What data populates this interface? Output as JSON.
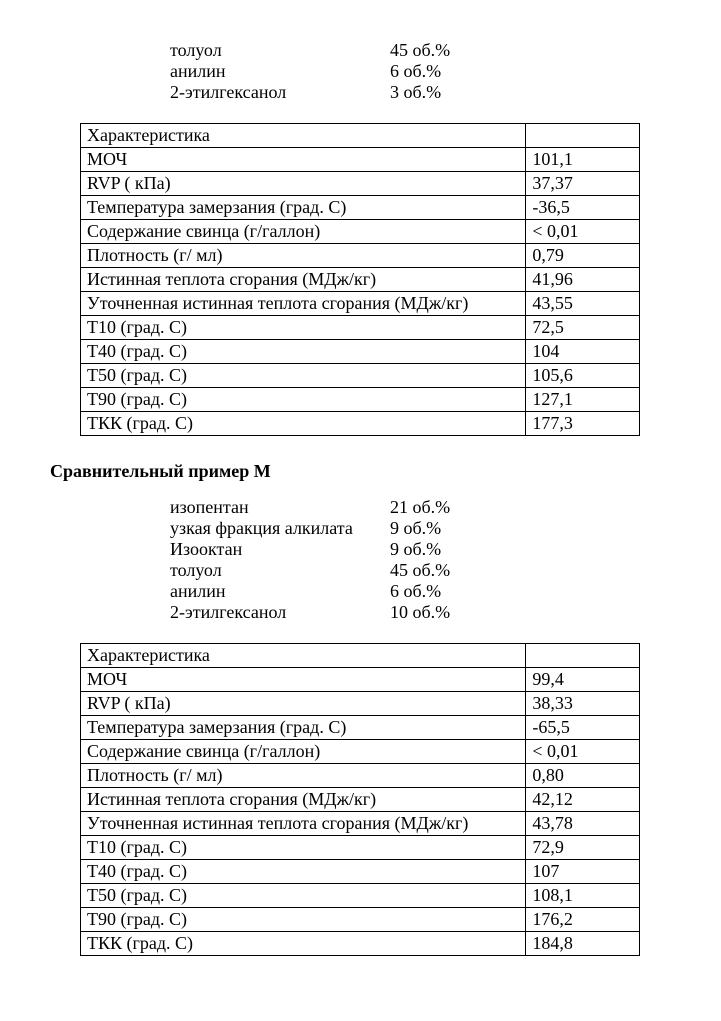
{
  "composition1": [
    {
      "label": "толуол",
      "value": "45 об.%"
    },
    {
      "label": "анилин",
      "value": "6 об.%"
    },
    {
      "label": "2-этилгексанол",
      "value": "3 об.%"
    }
  ],
  "table1": {
    "header": "Характеристика",
    "rows": [
      {
        "label": "МОЧ",
        "value": "101,1"
      },
      {
        "label": "RVP ( кПа)",
        "value": "37,37"
      },
      {
        "label": "Температура замерзания (град. С)",
        "value": "-36,5"
      },
      {
        "label": "Содержание свинца (г/галлон)",
        "value": "< 0,01"
      },
      {
        "label": "Плотность (г/ мл)",
        "value": "0,79"
      },
      {
        "label": "Истинная теплота сгорания (МДж/кг)",
        "value": "41,96"
      },
      {
        "label": "Уточненная истинная теплота сгорания (МДж/кг)",
        "value": "43,55"
      },
      {
        "label": "Т10 (град. С)",
        "value": "72,5"
      },
      {
        "label": "Т40 (град. С)",
        "value": "104"
      },
      {
        "label": "Т50 (град. С)",
        "value": "105,6"
      },
      {
        "label": "Т90 (град. С)",
        "value": "127,1"
      },
      {
        "label": "ТКК (град. С)",
        "value": "177,3"
      }
    ]
  },
  "section_title": "Сравнительный пример М",
  "composition2": [
    {
      "label": "изопентан",
      "value": "21 об.%"
    },
    {
      "label": "узкая фракция алкилата",
      "value": "9 об.%"
    },
    {
      "label": "Изооктан",
      "value": "9 об.%"
    },
    {
      "label": "толуол",
      "value": "45 об.%"
    },
    {
      "label": "анилин",
      "value": "6 об.%"
    },
    {
      "label": "2-этилгексанол",
      "value": "10 об.%"
    }
  ],
  "table2": {
    "header": "Характеристика",
    "rows": [
      {
        "label": "МОЧ",
        "value": "99,4"
      },
      {
        "label": "RVP ( кПа)",
        "value": "38,33"
      },
      {
        "label": "Температура замерзания (град. С)",
        "value": "-65,5"
      },
      {
        "label": "Содержание свинца (г/галлон)",
        "value": "< 0,01"
      },
      {
        "label": "Плотность (г/ мл)",
        "value": "0,80"
      },
      {
        "label": "Истинная теплота сгорания (МДж/кг)",
        "value": "42,12"
      },
      {
        "label": "Уточненная истинная теплота сгорания (МДж/кг)",
        "value": "43,78"
      },
      {
        "label": "Т10 (град. С)",
        "value": "72,9"
      },
      {
        "label": "Т40 (град. С)",
        "value": "107"
      },
      {
        "label": "Т50 (град. С)",
        "value": "108,1"
      },
      {
        "label": "Т90 (град. С)",
        "value": "176,2"
      },
      {
        "label": "ТКК (град. С)",
        "value": "184,8"
      }
    ]
  }
}
